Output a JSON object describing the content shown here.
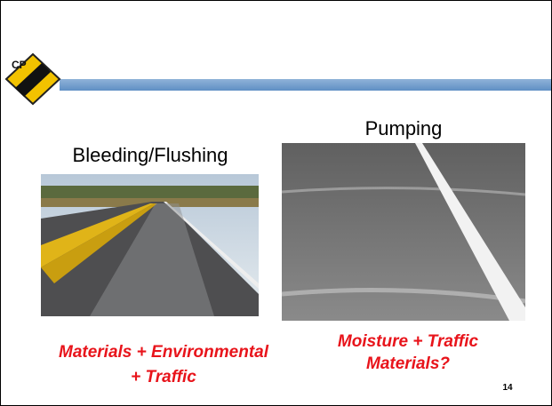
{
  "slide": {
    "left": {
      "title": "Bleeding/Flushing",
      "caption": [
        "Materials + Environmental",
        "+ Traffic"
      ]
    },
    "right": {
      "title": "Pumping",
      "caption": [
        "Moisture + Traffic",
        "Materials?"
      ]
    },
    "page_number": "14"
  }
}
